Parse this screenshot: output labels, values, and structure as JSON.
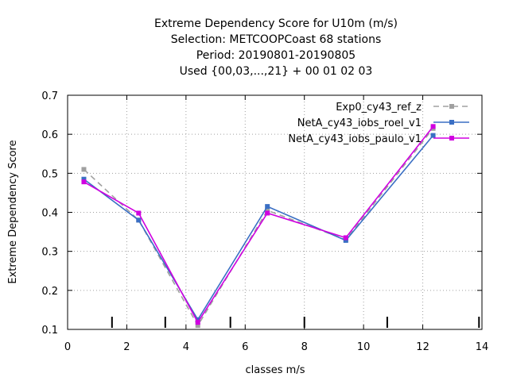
{
  "chart_data": {
    "type": "line",
    "title_lines": [
      "Extreme Dependency Score  for U10m (m/s)",
      "Selection: METCOOPCoast     68 stations",
      "Period: 20190801-20190805",
      "Used {00,03,...,21} + 00 01 02 03"
    ],
    "xlabel": "classes m/s",
    "ylabel": "Extreme Dependency Score",
    "xlim": [
      0,
      14
    ],
    "ylim": [
      0.1,
      0.7
    ],
    "xticks": [
      0,
      2,
      4,
      6,
      8,
      10,
      12,
      14
    ],
    "yticks": [
      0.1,
      0.2,
      0.3,
      0.4,
      0.5,
      0.6,
      0.7
    ],
    "xtick_labels": [
      "0",
      "2",
      "4",
      "6",
      "8",
      "10",
      "12",
      "14"
    ],
    "ytick_labels": [
      "0.1",
      "0.2",
      "0.3",
      "0.4",
      "0.5",
      "0.6",
      "0.7"
    ],
    "class_boundaries": [
      1.5,
      3.3,
      5.5,
      8.0,
      10.8,
      13.9
    ],
    "grid": true,
    "legend_position": "top-right",
    "series": [
      {
        "name": "Exp0_cy43_ref_z",
        "color": "#a0a0a0",
        "dashed": true,
        "x": [
          0.55,
          2.4,
          4.4,
          6.75,
          9.4,
          12.35
        ],
        "y": [
          0.51,
          0.38,
          0.11,
          0.405,
          0.33,
          0.615
        ]
      },
      {
        "name": "NetA_cy43_iobs_roel_v1",
        "color": "#3a6fc4",
        "dashed": false,
        "x": [
          0.55,
          2.4,
          4.4,
          6.75,
          9.4,
          12.35
        ],
        "y": [
          0.485,
          0.38,
          0.125,
          0.415,
          0.328,
          0.597
        ]
      },
      {
        "name": "NetA_cy43_iobs_paulo_v1",
        "color": "#d000e0",
        "dashed": false,
        "x": [
          0.55,
          2.4,
          4.4,
          6.75,
          9.4,
          12.35
        ],
        "y": [
          0.478,
          0.398,
          0.118,
          0.398,
          0.335,
          0.62
        ]
      }
    ]
  }
}
